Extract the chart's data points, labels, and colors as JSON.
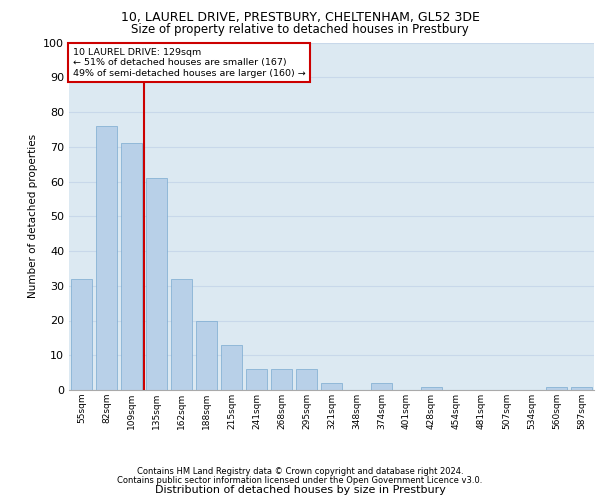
{
  "title_line1": "10, LAUREL DRIVE, PRESTBURY, CHELTENHAM, GL52 3DE",
  "title_line2": "Size of property relative to detached houses in Prestbury",
  "xlabel": "Distribution of detached houses by size in Prestbury",
  "ylabel": "Number of detached properties",
  "footer_line1": "Contains HM Land Registry data © Crown copyright and database right 2024.",
  "footer_line2": "Contains public sector information licensed under the Open Government Licence v3.0.",
  "annotation_line1": "10 LAUREL DRIVE: 129sqm",
  "annotation_line2": "← 51% of detached houses are smaller (167)",
  "annotation_line3": "49% of semi-detached houses are larger (160) →",
  "bar_color": "#b8d0e8",
  "bar_edge_color": "#7aaad0",
  "ref_line_color": "#cc0000",
  "annotation_box_edge_color": "#cc0000",
  "grid_color": "#c8d8ea",
  "background_color": "#dce9f2",
  "fig_background": "#ffffff",
  "categories": [
    "55sqm",
    "82sqm",
    "109sqm",
    "135sqm",
    "162sqm",
    "188sqm",
    "215sqm",
    "241sqm",
    "268sqm",
    "295sqm",
    "321sqm",
    "348sqm",
    "374sqm",
    "401sqm",
    "428sqm",
    "454sqm",
    "481sqm",
    "507sqm",
    "534sqm",
    "560sqm",
    "587sqm"
  ],
  "values": [
    32,
    76,
    71,
    61,
    32,
    20,
    13,
    6,
    6,
    6,
    2,
    0,
    2,
    0,
    1,
    0,
    0,
    0,
    0,
    1,
    1
  ],
  "ref_line_x": 2.5,
  "ylim": [
    0,
    100
  ],
  "yticks": [
    0,
    10,
    20,
    30,
    40,
    50,
    60,
    70,
    80,
    90,
    100
  ]
}
